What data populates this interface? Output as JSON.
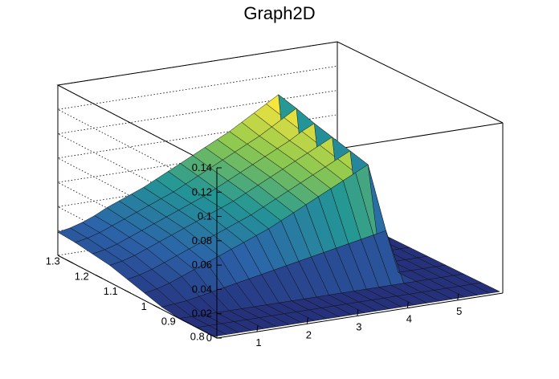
{
  "chart_data": {
    "type": "surface",
    "title": "Graph2D",
    "xlabel": "",
    "ylabel": "",
    "zlabel": "",
    "colormap": "viridis-like",
    "x_ticks": [
      "1",
      "2",
      "3",
      "4",
      "5"
    ],
    "y_ticks": [
      "0.8",
      "0.9",
      "1",
      "1.1",
      "1.2",
      "1.3"
    ],
    "z_ticks": [
      "0",
      "0.02",
      "0.04",
      "0.06",
      "0.08",
      "0.1",
      "0.12",
      "0.14"
    ],
    "xlim": [
      0.2,
      5.9
    ],
    "ylim": [
      0.78,
      1.33
    ],
    "zlim": [
      0,
      0.14
    ],
    "grid": true,
    "surface_rows": [
      {
        "y": 1.33,
        "z": [
          0.019,
          0.021,
          0.024,
          0.028,
          0.033,
          0.037,
          0.041,
          0.045,
          0.05,
          0.055,
          0.06,
          0.065,
          0.07,
          0.075,
          0.08,
          0.086,
          0.092,
          0.098,
          0.104,
          0,
          0,
          0,
          0,
          0
        ]
      },
      {
        "y": 1.27,
        "z": [
          0.018,
          0.02,
          0.023,
          0.027,
          0.031,
          0.035,
          0.039,
          0.043,
          0.047,
          0.052,
          0.057,
          0.062,
          0.067,
          0.072,
          0.077,
          0.082,
          0.088,
          0.094,
          0.1,
          0,
          0,
          0,
          0,
          0
        ]
      },
      {
        "y": 1.21,
        "z": [
          0.016,
          0.018,
          0.021,
          0.025,
          0.029,
          0.033,
          0.037,
          0.041,
          0.045,
          0.049,
          0.054,
          0.059,
          0.064,
          0.069,
          0.074,
          0.079,
          0.084,
          0.09,
          0.095,
          0,
          0,
          0,
          0,
          0
        ]
      },
      {
        "y": 1.15,
        "z": [
          0.014,
          0.016,
          0.019,
          0.023,
          0.027,
          0.031,
          0.035,
          0.039,
          0.043,
          0.047,
          0.051,
          0.056,
          0.061,
          0.066,
          0.071,
          0.076,
          0.081,
          0.086,
          0.091,
          0,
          0,
          0,
          0,
          0
        ]
      },
      {
        "y": 1.09,
        "z": [
          0.01,
          0.012,
          0.015,
          0.019,
          0.023,
          0.027,
          0.031,
          0.035,
          0.039,
          0.043,
          0.047,
          0.052,
          0.057,
          0.062,
          0.067,
          0.072,
          0.077,
          0.082,
          0.087,
          0,
          0,
          0,
          0,
          0
        ]
      },
      {
        "y": 1.03,
        "z": [
          0.006,
          0.008,
          0.011,
          0.015,
          0.019,
          0.023,
          0.027,
          0.031,
          0.035,
          0.039,
          0.043,
          0.048,
          0.053,
          0.058,
          0.063,
          0.068,
          0.073,
          0.078,
          0.083,
          0,
          0,
          0,
          0,
          0
        ]
      },
      {
        "y": 0.97,
        "z": [
          0.002,
          0.003,
          0.004,
          0.006,
          0.008,
          0.01,
          0.012,
          0.014,
          0.016,
          0.018,
          0.02,
          0.022,
          0.024,
          0.026,
          0.028,
          0.03,
          0.032,
          0.034,
          0.036,
          0,
          0,
          0,
          0,
          0
        ]
      },
      {
        "y": 0.91,
        "z": [
          0,
          0,
          0,
          0,
          0,
          0,
          0,
          0,
          0,
          0,
          0,
          0,
          0,
          0,
          0,
          0,
          0,
          0,
          0,
          0,
          0,
          0,
          0,
          0
        ]
      },
      {
        "y": 0.85,
        "z": [
          0,
          0,
          0,
          0,
          0,
          0,
          0,
          0,
          0,
          0,
          0,
          0,
          0,
          0,
          0,
          0,
          0,
          0,
          0,
          0,
          0,
          0,
          0,
          0
        ]
      },
      {
        "y": 0.79,
        "z": [
          0,
          0,
          0,
          0,
          0,
          0,
          0,
          0,
          0,
          0,
          0,
          0,
          0,
          0,
          0,
          0,
          0,
          0,
          0,
          0,
          0,
          0,
          0,
          0
        ]
      }
    ],
    "surface_x": [
      0.2,
      0.45,
      0.7,
      0.95,
      1.2,
      1.45,
      1.7,
      1.95,
      2.2,
      2.45,
      2.7,
      2.95,
      3.2,
      3.45,
      3.7,
      3.95,
      4.2,
      4.45,
      4.7,
      4.95,
      5.2,
      5.45,
      5.7,
      5.9
    ]
  }
}
